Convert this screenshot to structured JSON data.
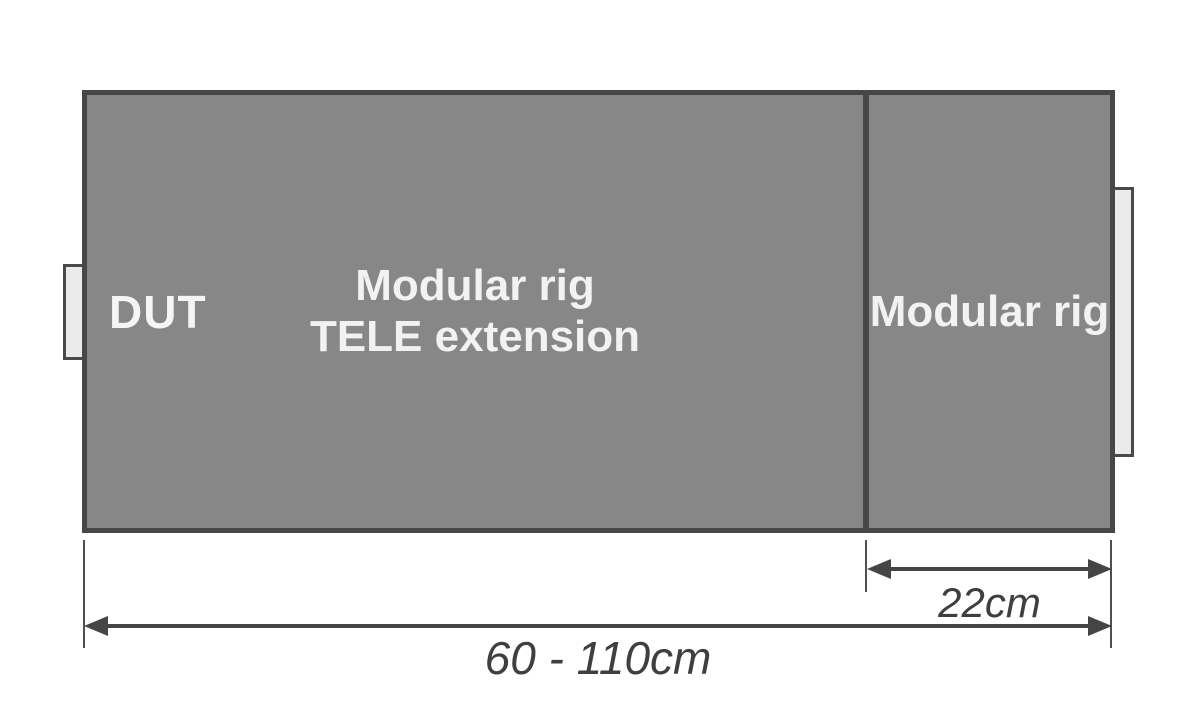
{
  "diagram": {
    "title_hint": "Modular rig with TELE extension dimension diagram",
    "dut": {
      "label": "DUT"
    },
    "tele_section": {
      "label_lines": [
        "Modular rig",
        "TELE extension"
      ]
    },
    "rig_section": {
      "label": "Modular rig"
    },
    "dimensions": {
      "rig_width_label": "22cm",
      "total_width_label": "60 - 110cm"
    },
    "colors": {
      "body_fill": "#878787",
      "body_border": "#474747",
      "tab_fill": "#ebebeb",
      "tab_border": "#4a4a4a",
      "label_text": "#f2f2f2",
      "dimension_text": "#3f3f3f",
      "dimension_line": "#454545",
      "background": "#ffffff"
    }
  }
}
